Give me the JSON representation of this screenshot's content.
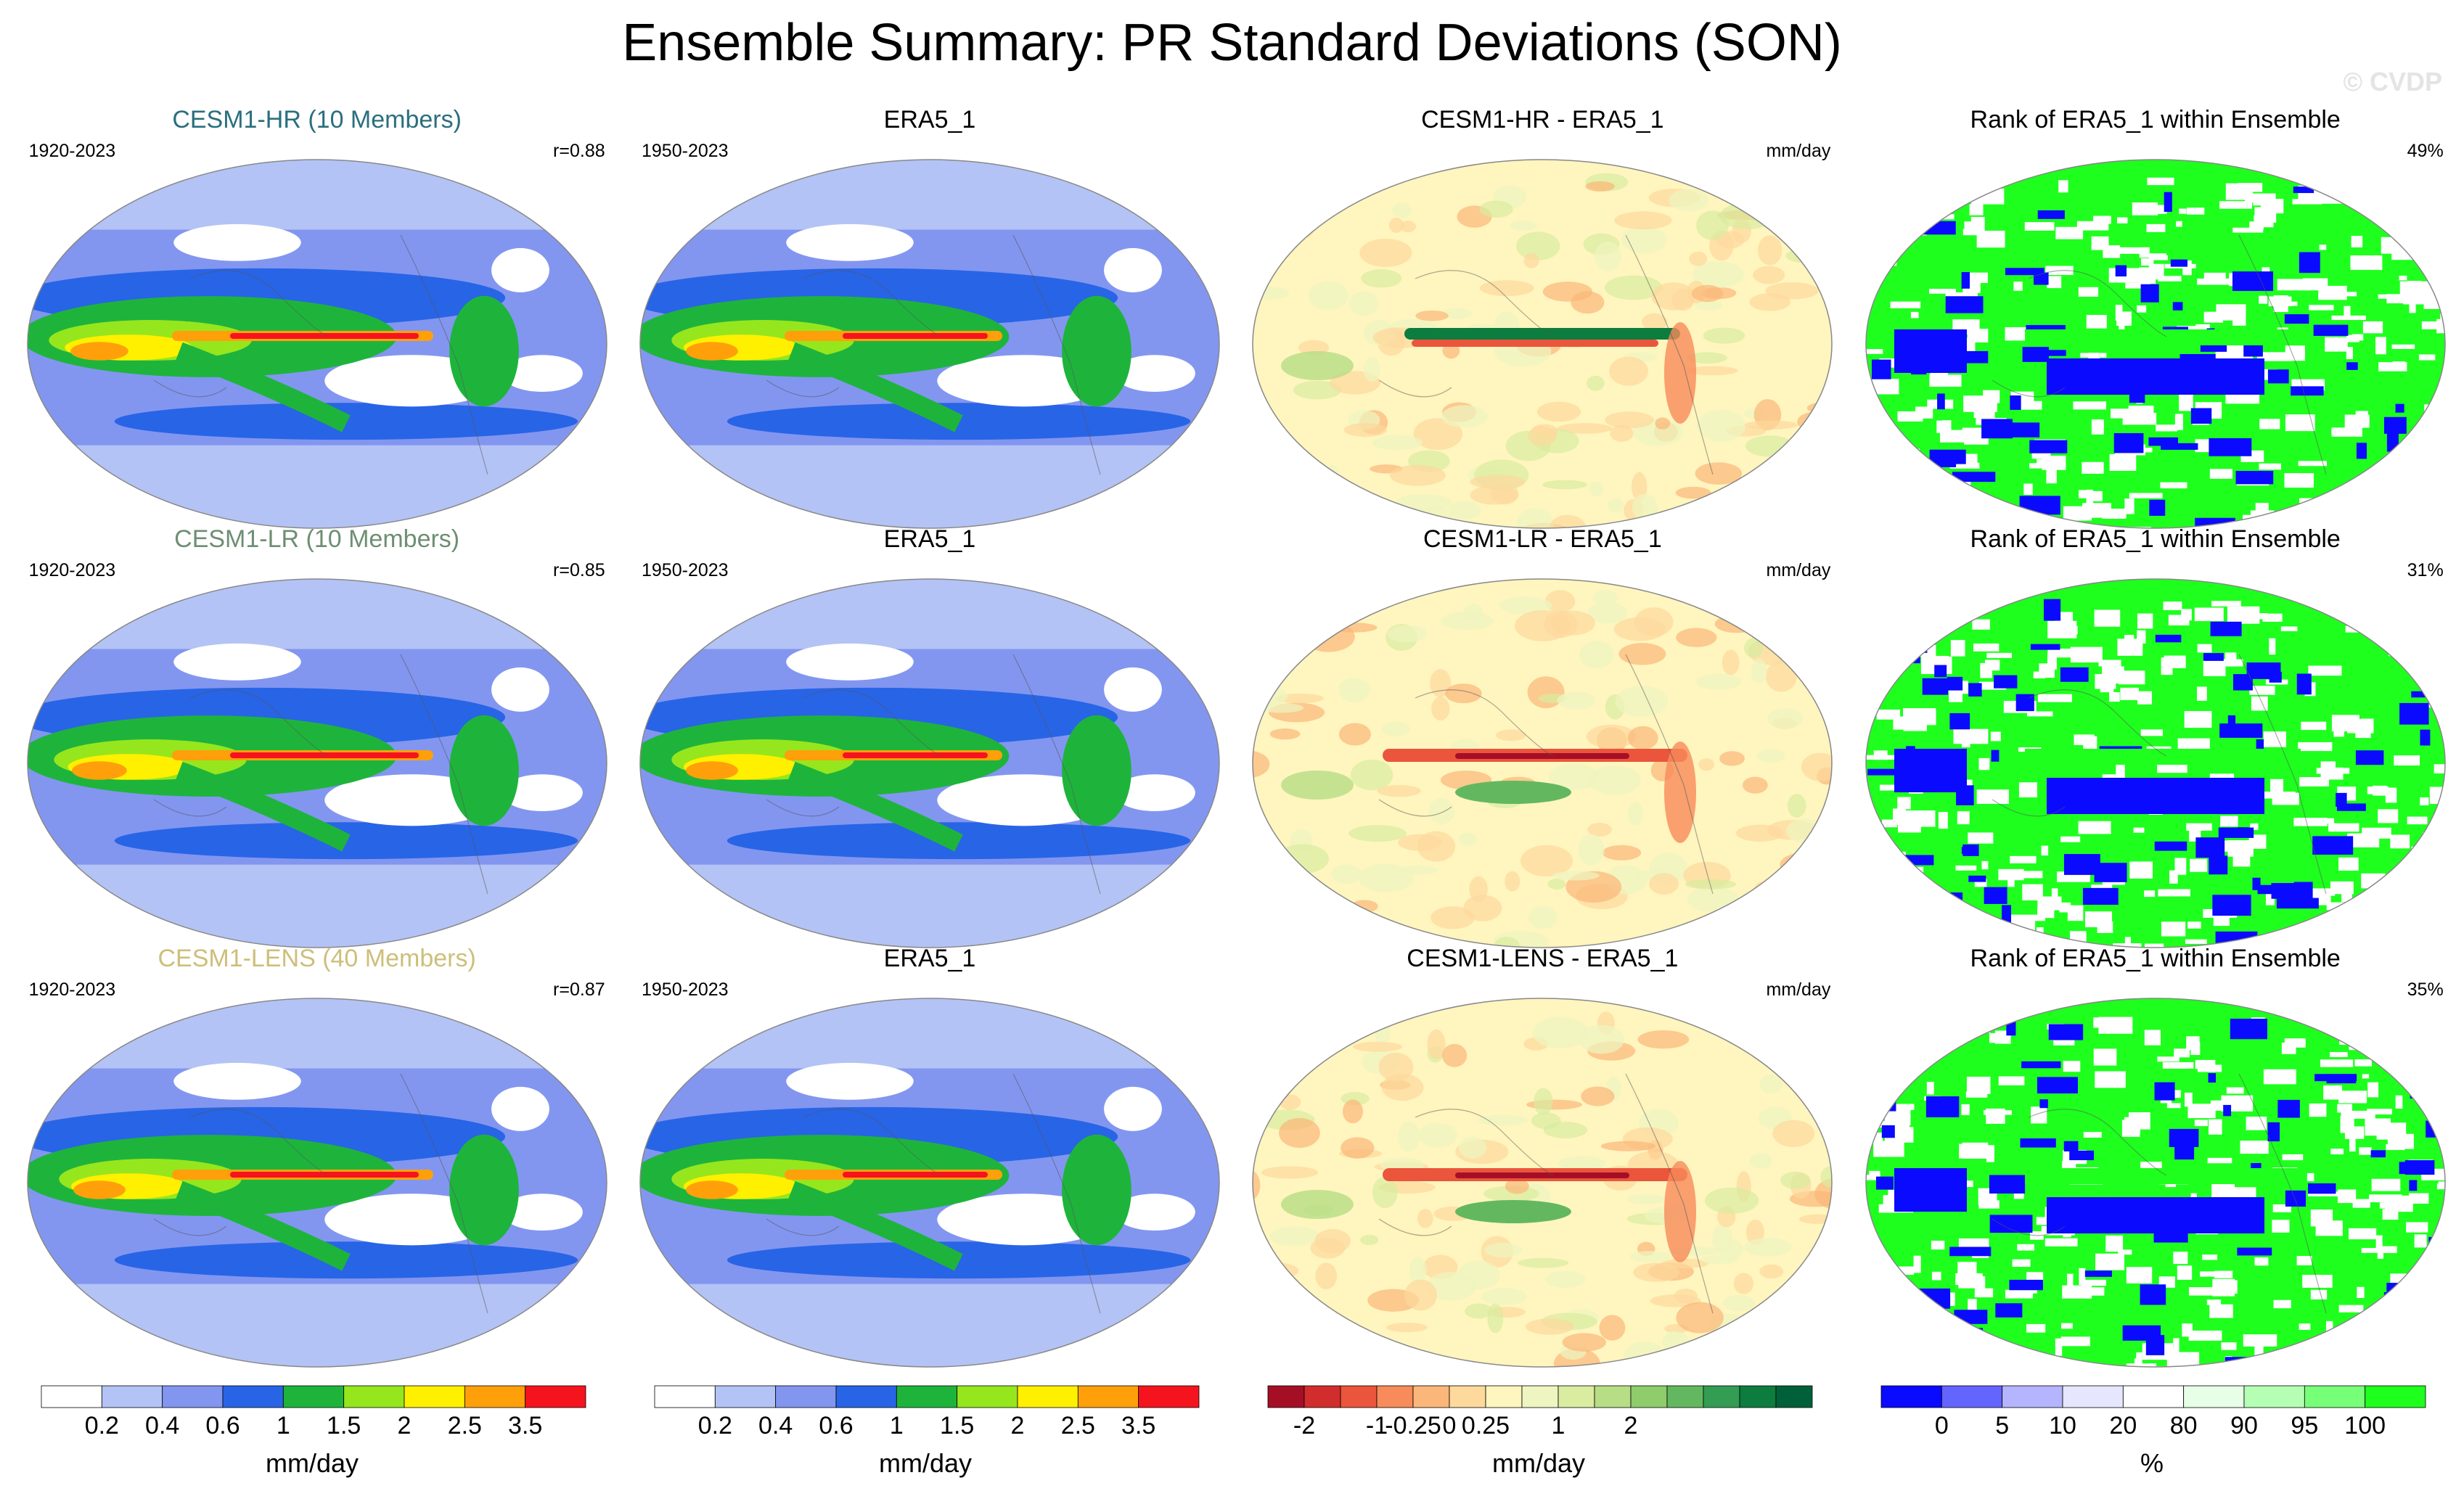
{
  "title": "Ensemble Summary: PR Standard Deviations (SON)",
  "watermark": "© CVDP",
  "rows": [
    {
      "model": {
        "title": "CESM1-HR (10 Members)",
        "title_color": "#2a6f7e",
        "period": "1920-2023",
        "corr": "r=0.88"
      },
      "obs": {
        "title": "ERA5_1",
        "period": "1950-2023"
      },
      "diff": {
        "title": "CESM1-HR - ERA5_1",
        "units": "mm/day"
      },
      "rank": {
        "title": "Rank of ERA5_1 within Ensemble",
        "percent": "49%"
      }
    },
    {
      "model": {
        "title": "CESM1-LR (10 Members)",
        "title_color": "#6d8f72",
        "period": "1920-2023",
        "corr": "r=0.85"
      },
      "obs": {
        "title": "ERA5_1",
        "period": "1950-2023"
      },
      "diff": {
        "title": "CESM1-LR - ERA5_1",
        "units": "mm/day"
      },
      "rank": {
        "title": "Rank of ERA5_1 within Ensemble",
        "percent": "31%"
      }
    },
    {
      "model": {
        "title": "CESM1-LENS (40 Members)",
        "title_color": "#cdbf7a",
        "period": "1920-2023",
        "corr": "r=0.87"
      },
      "obs": {
        "title": "ERA5_1",
        "period": "1950-2023"
      },
      "diff": {
        "title": "CESM1-LENS - ERA5_1",
        "units": "mm/day"
      },
      "rank": {
        "title": "Rank of ERA5_1 within Ensemble",
        "percent": "35%"
      }
    }
  ],
  "colorbars": [
    {
      "colors": [
        "#ffffff",
        "#b4c3f5",
        "#8296f0",
        "#2864e6",
        "#1eb43c",
        "#96e61e",
        "#fff000",
        "#ffa00a",
        "#f5141e"
      ],
      "ticks": [
        "0.2",
        "0.4",
        "0.6",
        "1",
        "1.5",
        "2",
        "2.5",
        "3.5"
      ],
      "label": "mm/day"
    },
    {
      "colors": [
        "#ffffff",
        "#b4c3f5",
        "#8296f0",
        "#2864e6",
        "#1eb43c",
        "#96e61e",
        "#fff000",
        "#ffa00a",
        "#f5141e"
      ],
      "ticks": [
        "0.2",
        "0.4",
        "0.6",
        "1",
        "1.5",
        "2",
        "2.5",
        "3.5"
      ],
      "label": "mm/day"
    },
    {
      "colors": [
        "#a50f26",
        "#d22d2d",
        "#ea553c",
        "#f78b5a",
        "#fbb679",
        "#fdd99c",
        "#fff5be",
        "#eef5c0",
        "#d9eca0",
        "#b7dd85",
        "#8fcc6c",
        "#63b85f",
        "#329d53",
        "#0c7d3e",
        "#00603a"
      ],
      "ticks": [
        "-2",
        "-1",
        "-0.25",
        "0",
        "0.25",
        "1",
        "2"
      ],
      "tick_positions": [
        1,
        3,
        4,
        5,
        6,
        8,
        10
      ],
      "label": "mm/day"
    },
    {
      "colors": [
        "#0a0aff",
        "#6464ff",
        "#b4b4ff",
        "#e6e6ff",
        "#ffffff",
        "#e6ffe6",
        "#b4ffb4",
        "#78ff78",
        "#1eff1e"
      ],
      "ticks": [
        "0",
        "5",
        "10",
        "20",
        "80",
        "90",
        "95",
        "100"
      ],
      "label": "%"
    }
  ]
}
